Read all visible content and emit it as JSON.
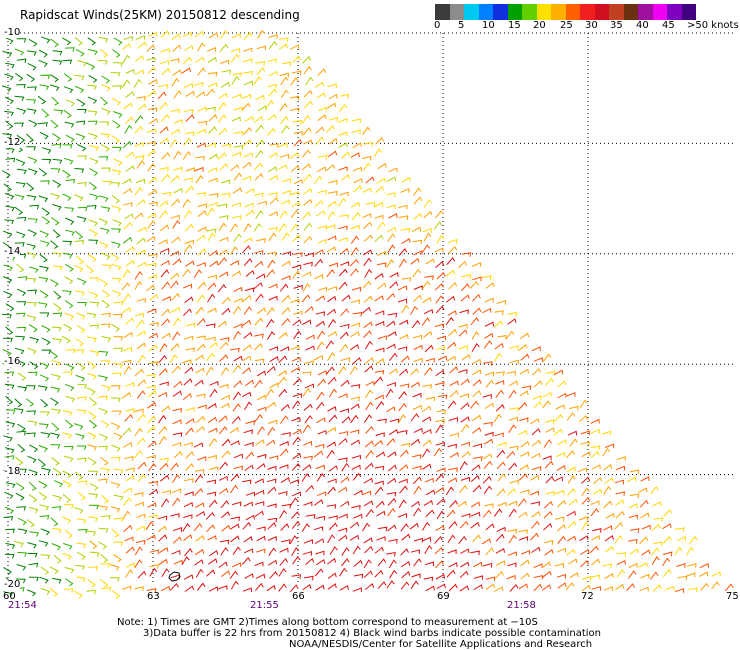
{
  "title": "Rapidscat Winds(25KM) 20150812 descending",
  "colorbar": {
    "colors": [
      "#3c3c3c",
      "#8c8c8c",
      "#00c8f0",
      "#0080ff",
      "#1030e0",
      "#00a000",
      "#60d000",
      "#ffe000",
      "#ffb000",
      "#ff6000",
      "#f02020",
      "#d01020",
      "#c04020",
      "#6a3010",
      "#a010a0",
      "#f000f0",
      "#8000c0",
      "#400080"
    ],
    "labels": [
      "0",
      "5",
      "10",
      "15",
      "20",
      "25",
      "30",
      "35",
      "40",
      "45",
      ">50 knots"
    ]
  },
  "map": {
    "lat_labels": [
      "-10",
      "-12",
      "-14",
      "-16",
      "-18",
      "-20"
    ],
    "lon_labels": [
      "60",
      "63",
      "66",
      "69",
      "72",
      "75"
    ],
    "time_labels": [
      "21:54",
      "21:55",
      "21:58"
    ],
    "lon_range": [
      60,
      75
    ],
    "lat_range": [
      -20,
      -10
    ],
    "grid": true,
    "grid_style": "dotted",
    "barb_colors": {
      "green_dark": "#008000",
      "green": "#30b000",
      "yellow_green": "#b0d000",
      "yellow": "#ffd700",
      "orange": "#ffa000",
      "red_orange": "#ff5000",
      "red": "#e01010"
    }
  },
  "notes": {
    "line1": "Note: 1) Times are GMT 2)Times along bottom correspond to measurement at −10S",
    "line2": "3)Data buffer is 22 hrs from 20150812 4) Black wind barbs indicate possible contamination",
    "line3": "NOAA/NESDIS/Center for Satellite Applications and Research"
  }
}
